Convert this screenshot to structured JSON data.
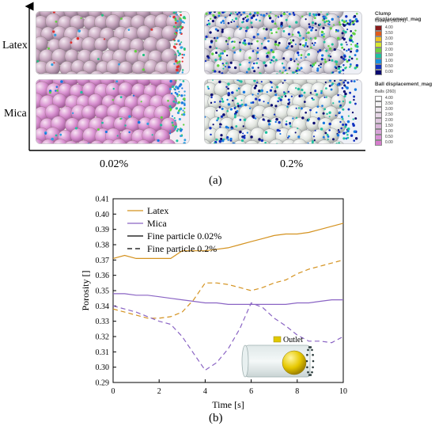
{
  "panel_a": {
    "row_labels": [
      "Latex",
      "Mica"
    ],
    "column_labels": [
      "0.02%",
      "0.2%"
    ],
    "tag": "(a)",
    "clump_colorbar": {
      "title": "Clump displacement_mag",
      "subtitle": "Clumps (56979)",
      "ticks": [
        "4.00",
        "3.50",
        "3.00",
        "2.50",
        "2.00",
        "1.50",
        "1.00",
        "0.50",
        "0.00"
      ],
      "colors": [
        "#8b1a1a",
        "#e05a1a",
        "#f0c020",
        "#d8e830",
        "#70d040",
        "#20c0a0",
        "#1890e0",
        "#1030c0",
        "#0a0a70"
      ]
    },
    "ball_colorbar": {
      "title": "Ball displacement_mag",
      "subtitle": "Balls (260)",
      "ticks": [
        "4.00",
        "3.50",
        "3.00",
        "2.50",
        "2.00",
        "1.50",
        "1.00",
        "0.50",
        "0.00"
      ],
      "colors": [
        "#ffffff",
        "#f6f4f6",
        "#eee6ee",
        "#e6d6e6",
        "#dec6de",
        "#d8b4d8",
        "#d6a2d6",
        "#d890d6",
        "#d67ccc"
      ]
    }
  },
  "panel_b": {
    "tag": "(b)",
    "inset_label": "Outlet"
  },
  "colors": {
    "latex": "#d4921f",
    "mica": "#8a64c4"
  },
  "chart_data": {
    "type": "line",
    "title": "",
    "xlabel": "Time [s]",
    "ylabel": "Porosity []",
    "xlim": [
      0,
      10
    ],
    "ylim": [
      0.29,
      0.41
    ],
    "xticks": [
      0,
      2,
      4,
      6,
      8,
      10
    ],
    "yticks": [
      0.29,
      0.3,
      0.31,
      0.32,
      0.33,
      0.34,
      0.35,
      0.36,
      0.37,
      0.38,
      0.39,
      0.4,
      0.41
    ],
    "grid": false,
    "legend_position": "top-left",
    "legend": [
      "Latex",
      "Mica",
      "Fine particle 0.02%",
      "Fine particle 0.2%"
    ],
    "series": [
      {
        "name": "Latex",
        "style": "solid",
        "color": "#d4921f",
        "x": [
          0,
          0.5,
          1,
          1.5,
          2,
          2.5,
          3,
          3.5,
          4,
          4.5,
          5,
          5.5,
          6,
          6.5,
          7,
          7.5,
          8,
          8.5,
          9,
          9.5,
          10
        ],
        "y": [
          0.371,
          0.373,
          0.371,
          0.371,
          0.371,
          0.371,
          0.376,
          0.376,
          0.376,
          0.377,
          0.378,
          0.38,
          0.382,
          0.384,
          0.386,
          0.387,
          0.387,
          0.388,
          0.39,
          0.392,
          0.394
        ]
      },
      {
        "name": "Latex",
        "style": "dashed",
        "color": "#d4921f",
        "x": [
          0,
          0.5,
          1,
          1.5,
          2,
          2.5,
          3,
          3.5,
          4,
          4.5,
          5,
          5.5,
          6,
          6.5,
          7,
          7.5,
          8,
          8.5,
          9,
          9.5,
          10
        ],
        "y": [
          0.338,
          0.336,
          0.334,
          0.332,
          0.332,
          0.333,
          0.336,
          0.344,
          0.355,
          0.355,
          0.354,
          0.352,
          0.35,
          0.352,
          0.355,
          0.357,
          0.361,
          0.364,
          0.366,
          0.368,
          0.37
        ]
      },
      {
        "name": "Mica",
        "style": "solid",
        "color": "#8a64c4",
        "x": [
          0,
          0.5,
          1,
          1.5,
          2,
          2.5,
          3,
          3.5,
          4,
          4.5,
          5,
          5.5,
          6,
          6.5,
          7,
          7.5,
          8,
          8.5,
          9,
          9.5,
          10
        ],
        "y": [
          0.348,
          0.348,
          0.347,
          0.347,
          0.346,
          0.345,
          0.344,
          0.343,
          0.342,
          0.342,
          0.341,
          0.341,
          0.341,
          0.341,
          0.341,
          0.341,
          0.342,
          0.342,
          0.343,
          0.344,
          0.344
        ]
      },
      {
        "name": "Mica",
        "style": "dashed",
        "color": "#8a64c4",
        "x": [
          0,
          0.5,
          1,
          1.5,
          2,
          2.5,
          3,
          3.5,
          4,
          4.5,
          5,
          5.5,
          6,
          6.5,
          7,
          7.5,
          8,
          8.5,
          9,
          9.5,
          10
        ],
        "y": [
          0.34,
          0.338,
          0.336,
          0.333,
          0.33,
          0.328,
          0.32,
          0.309,
          0.298,
          0.303,
          0.312,
          0.325,
          0.342,
          0.339,
          0.332,
          0.327,
          0.321,
          0.317,
          0.317,
          0.316,
          0.32
        ]
      }
    ]
  }
}
